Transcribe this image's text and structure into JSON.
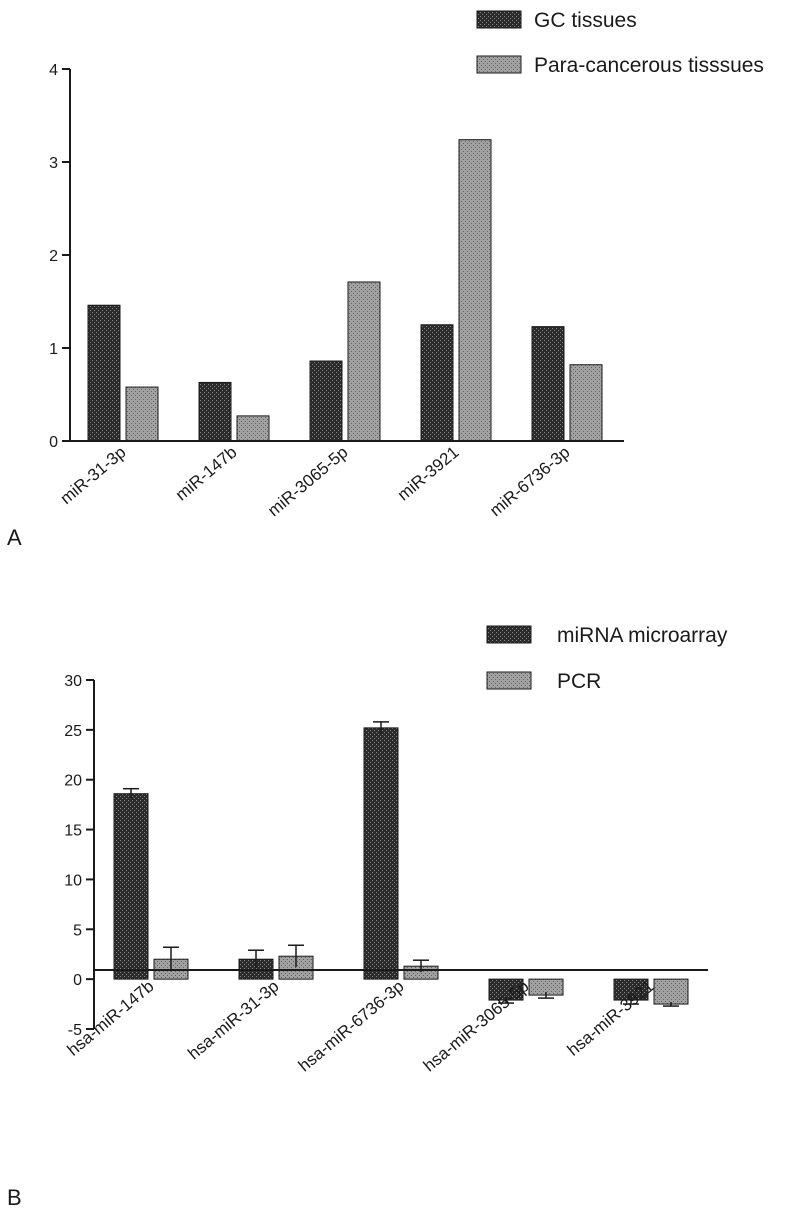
{
  "colors": {
    "series_dark": "#2b2b2b",
    "series_light": "#9a9a9a",
    "axis": "#1a1a1a"
  },
  "chart_data": [
    {
      "type": "bar",
      "panel_label": "A",
      "categories": [
        "miR-31-3p",
        "miR-147b",
        "miR-3065-5p",
        "miR-3921",
        "miR-6736-3p"
      ],
      "series": [
        {
          "name": "GC tissues",
          "values": [
            1.46,
            0.63,
            0.86,
            1.25,
            1.23
          ]
        },
        {
          "name": "Para-cancerous tisssues",
          "values": [
            0.58,
            0.27,
            1.71,
            3.24,
            0.82
          ]
        }
      ],
      "ylim": [
        0,
        4
      ],
      "yticks": [
        "0",
        "1",
        "2",
        "3",
        "4"
      ],
      "legend_position": "top-right",
      "grid": false
    },
    {
      "type": "bar",
      "panel_label": "B",
      "categories": [
        "hsa-miR-147b",
        "hsa-miR-31-3p",
        "hsa-miR-6736-3p",
        "hsa-miR-3065-5p",
        "hsa-miR-3921"
      ],
      "series": [
        {
          "name": "miRNA microarray",
          "values": [
            18.6,
            2.0,
            25.2,
            -2.1,
            -2.1
          ],
          "errors": [
            0.5,
            0.9,
            0.6,
            0.3,
            0.4
          ]
        },
        {
          "name": "PCR",
          "values": [
            2.0,
            2.3,
            1.3,
            -1.6,
            -2.5
          ],
          "errors": [
            1.2,
            1.1,
            0.6,
            0.3,
            0.2
          ]
        }
      ],
      "ylim": [
        -5,
        30
      ],
      "yticks": [
        "-5",
        "0",
        "5",
        "10",
        "15",
        "20",
        "25",
        "30"
      ],
      "legend_position": "top-right",
      "grid": false
    }
  ]
}
